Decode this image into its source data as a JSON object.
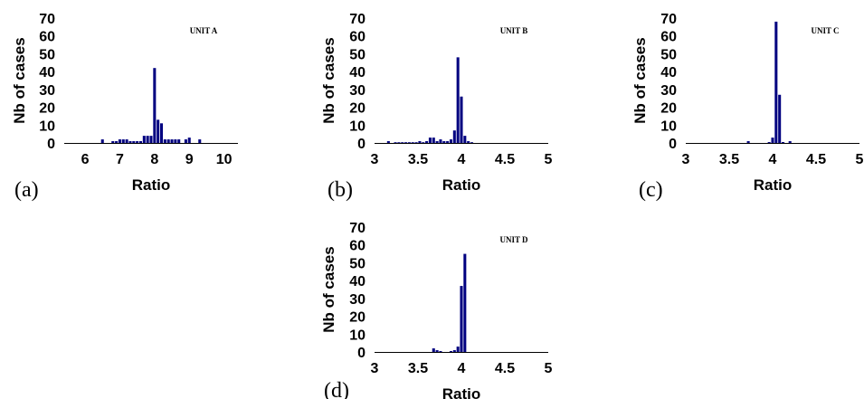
{
  "chart_data": [
    {
      "type": "bar",
      "panel": "(a)",
      "title": "UNIT A",
      "xlabel": "Ratio",
      "ylabel": "Nb of cases",
      "xlim": [
        5.4,
        10.4
      ],
      "ylim": [
        0,
        70
      ],
      "xticks": [
        6,
        7,
        8,
        9,
        10
      ],
      "yticks": [
        0,
        10,
        20,
        30,
        40,
        50,
        60,
        70
      ],
      "bin_width": 0.1,
      "color": "#000080",
      "x": [
        6.5,
        6.8,
        6.9,
        7.0,
        7.1,
        7.2,
        7.3,
        7.4,
        7.5,
        7.6,
        7.7,
        7.8,
        7.9,
        8.0,
        8.1,
        8.2,
        8.3,
        8.4,
        8.5,
        8.6,
        8.7,
        8.9,
        9.0,
        9.3
      ],
      "values": [
        2,
        1,
        1,
        2,
        2,
        2,
        1,
        1,
        1,
        1,
        4,
        4,
        4,
        42,
        13,
        11,
        2,
        2,
        2,
        2,
        2,
        2,
        3,
        2
      ]
    },
    {
      "type": "bar",
      "panel": "(b)",
      "title": "UNIT B",
      "xlabel": "Ratio",
      "ylabel": "Nb of cases",
      "xlim": [
        3,
        5
      ],
      "ylim": [
        0,
        70
      ],
      "xticks": [
        3,
        3.5,
        4,
        4.5,
        5
      ],
      "xtick_labels": [
        "3",
        "3.5",
        "4",
        "4.5",
        "5"
      ],
      "yticks": [
        0,
        10,
        20,
        30,
        40,
        50,
        60,
        70
      ],
      "bin_width": 0.04,
      "color": "#000080",
      "x": [
        3.16,
        3.24,
        3.28,
        3.32,
        3.36,
        3.4,
        3.44,
        3.48,
        3.52,
        3.56,
        3.6,
        3.64,
        3.68,
        3.72,
        3.76,
        3.8,
        3.84,
        3.88,
        3.92,
        3.96,
        4.0,
        4.04,
        4.08,
        4.12
      ],
      "values": [
        1,
        0.4,
        0.4,
        0.4,
        0.4,
        0.4,
        0.4,
        0.4,
        1,
        0.4,
        1,
        3,
        3,
        1,
        2,
        1,
        1,
        2,
        7,
        48,
        26,
        4,
        1,
        0.4
      ]
    },
    {
      "type": "bar",
      "panel": "(c)",
      "title": "UNIT C",
      "xlabel": "Ratio",
      "ylabel": "Nb of cases",
      "xlim": [
        3,
        5
      ],
      "ylim": [
        0,
        70
      ],
      "xticks": [
        3,
        3.5,
        4,
        4.5,
        5
      ],
      "xtick_labels": [
        "3",
        "3.5",
        "4",
        "4.5",
        "5"
      ],
      "yticks": [
        0,
        10,
        20,
        30,
        40,
        50,
        60,
        70
      ],
      "bin_width": 0.04,
      "color": "#000080",
      "x": [
        3.72,
        3.96,
        4.0,
        4.04,
        4.08,
        4.12,
        4.2
      ],
      "values": [
        1,
        0.5,
        3,
        68,
        27,
        0.5,
        1
      ]
    },
    {
      "type": "bar",
      "panel": "(d)",
      "title": "UNIT D",
      "xlabel": "Ratio",
      "ylabel": "Nb of cases",
      "xlim": [
        3,
        5
      ],
      "ylim": [
        0,
        70
      ],
      "xticks": [
        3,
        3.5,
        4,
        4.5,
        5
      ],
      "xtick_labels": [
        "3",
        "3.5",
        "4",
        "4.5",
        "5"
      ],
      "yticks": [
        0,
        10,
        20,
        30,
        40,
        50,
        60,
        70
      ],
      "bin_width": 0.04,
      "color": "#000080",
      "x": [
        3.68,
        3.72,
        3.76,
        3.88,
        3.92,
        3.96,
        4.0,
        4.04
      ],
      "values": [
        2,
        1,
        0.5,
        0.5,
        1,
        3,
        37,
        55
      ]
    }
  ]
}
